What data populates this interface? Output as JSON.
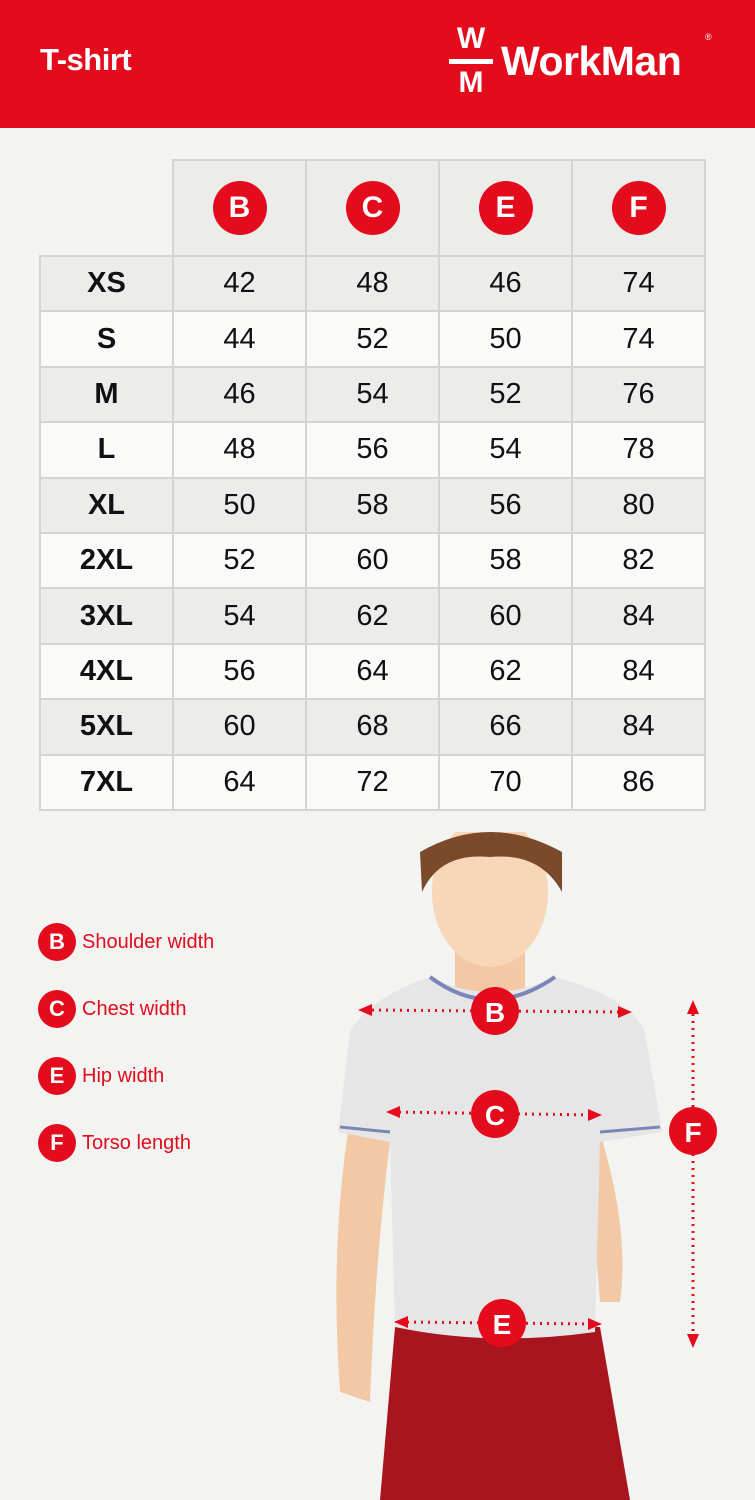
{
  "header": {
    "title": "T-shirt",
    "brand": {
      "mark_top": "W",
      "mark_bottom": "M",
      "name": "WorkMan",
      "registered": "®"
    }
  },
  "colors": {
    "accent": "#e30b1c",
    "background": "#f3f3f1"
  },
  "table": {
    "columns": [
      "B",
      "C",
      "E",
      "F"
    ],
    "rows": [
      {
        "size": "XS",
        "values": [
          "42",
          "48",
          "46",
          "74"
        ]
      },
      {
        "size": "S",
        "values": [
          "44",
          "52",
          "50",
          "74"
        ]
      },
      {
        "size": "M",
        "values": [
          "46",
          "54",
          "52",
          "76"
        ]
      },
      {
        "size": "L",
        "values": [
          "48",
          "56",
          "54",
          "78"
        ]
      },
      {
        "size": "XL",
        "values": [
          "50",
          "58",
          "56",
          "80"
        ]
      },
      {
        "size": "2XL",
        "values": [
          "52",
          "60",
          "58",
          "82"
        ]
      },
      {
        "size": "3XL",
        "values": [
          "54",
          "62",
          "60",
          "84"
        ]
      },
      {
        "size": "4XL",
        "values": [
          "56",
          "64",
          "62",
          "84"
        ]
      },
      {
        "size": "5XL",
        "values": [
          "60",
          "68",
          "66",
          "84"
        ]
      },
      {
        "size": "7XL",
        "values": [
          "64",
          "72",
          "70",
          "86"
        ]
      }
    ]
  },
  "legend": [
    {
      "letter": "B",
      "label": "Shoulder width"
    },
    {
      "letter": "C",
      "label": "Chest width"
    },
    {
      "letter": "E",
      "label": "Hip width"
    },
    {
      "letter": "F",
      "label": "Torso length"
    }
  ],
  "illustration": {
    "markers": [
      "B",
      "C",
      "E",
      "F"
    ]
  }
}
